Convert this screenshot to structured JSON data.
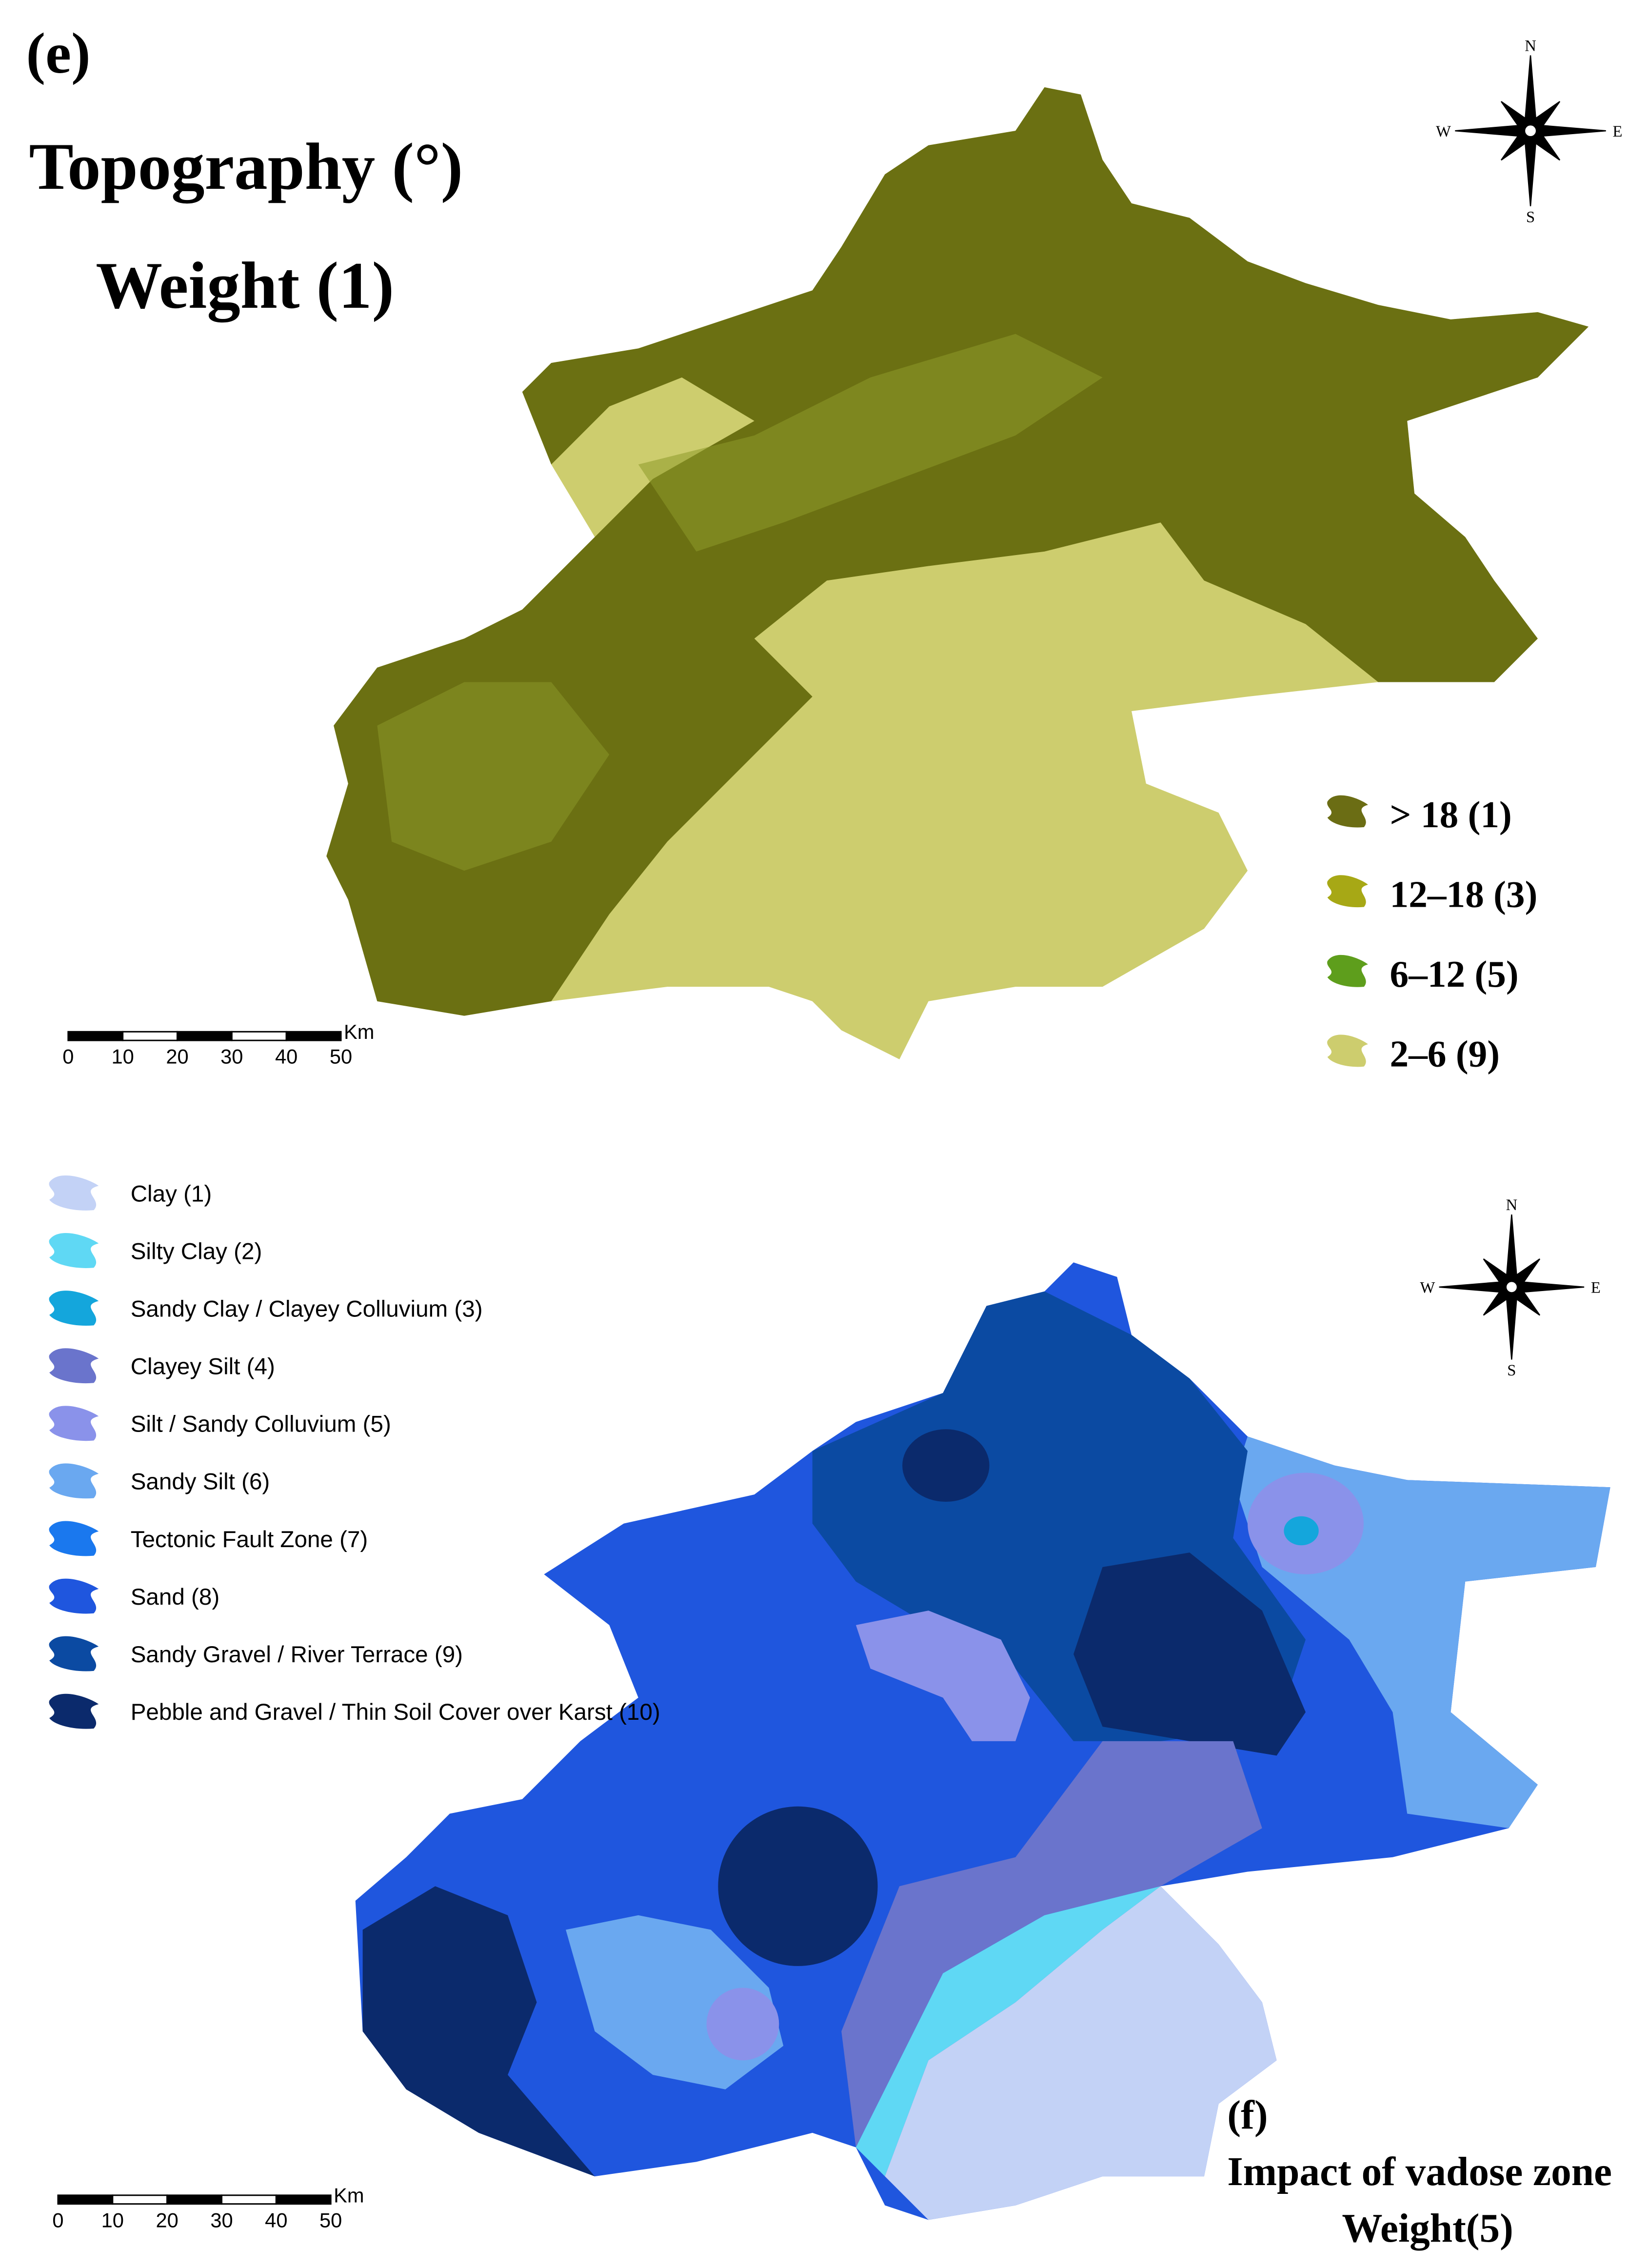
{
  "panel_e": {
    "label": "(e)",
    "title": "Topography (°)",
    "weight": "Weight (1)",
    "compass": {
      "n": "N",
      "s": "S",
      "w": "W",
      "e": "E"
    },
    "scale_bar": {
      "ticks": [
        0,
        10,
        20,
        30,
        40,
        50
      ],
      "unit": "Km"
    },
    "legend": [
      {
        "label": "> 18 (1)",
        "color": "#6b6d14"
      },
      {
        "label": "12–18 (3)",
        "color": "#a7a815"
      },
      {
        "label": "6–12 (5)",
        "color": "#5e9e1c"
      },
      {
        "label": "2–6 (9)",
        "color": "#cdcd6e"
      }
    ]
  },
  "panel_f": {
    "label": "(f)",
    "title": "Impact of vadose zone",
    "weight": "Weight(5)",
    "compass": {
      "n": "N",
      "s": "S",
      "w": "W",
      "e": "E"
    },
    "scale_bar": {
      "ticks": [
        0,
        10,
        20,
        30,
        40,
        50
      ],
      "unit": "Km"
    },
    "legend": [
      {
        "label": "Clay (1)",
        "color": "#c3d2f6"
      },
      {
        "label": "Silty Clay (2)",
        "color": "#5fd8f4"
      },
      {
        "label": "Sandy Clay / Clayey Colluvium (3)",
        "color": "#14a6dc"
      },
      {
        "label": "Clayey Silt (4)",
        "color": "#6a74cc"
      },
      {
        "label": "Silt / Sandy Colluvium (5)",
        "color": "#8a92ea"
      },
      {
        "label": "Sandy Silt (6)",
        "color": "#6aa8f0"
      },
      {
        "label": "Tectonic Fault Zone (7)",
        "color": "#1a78ee"
      },
      {
        "label": "Sand (8)",
        "color": "#1f56de"
      },
      {
        "label": "Sandy Gravel / River Terrace (9)",
        "color": "#0b4aa2"
      },
      {
        "label": "Pebble and Gravel / Thin Soil Cover over Karst (10)",
        "color": "#0b2a6c"
      }
    ]
  }
}
